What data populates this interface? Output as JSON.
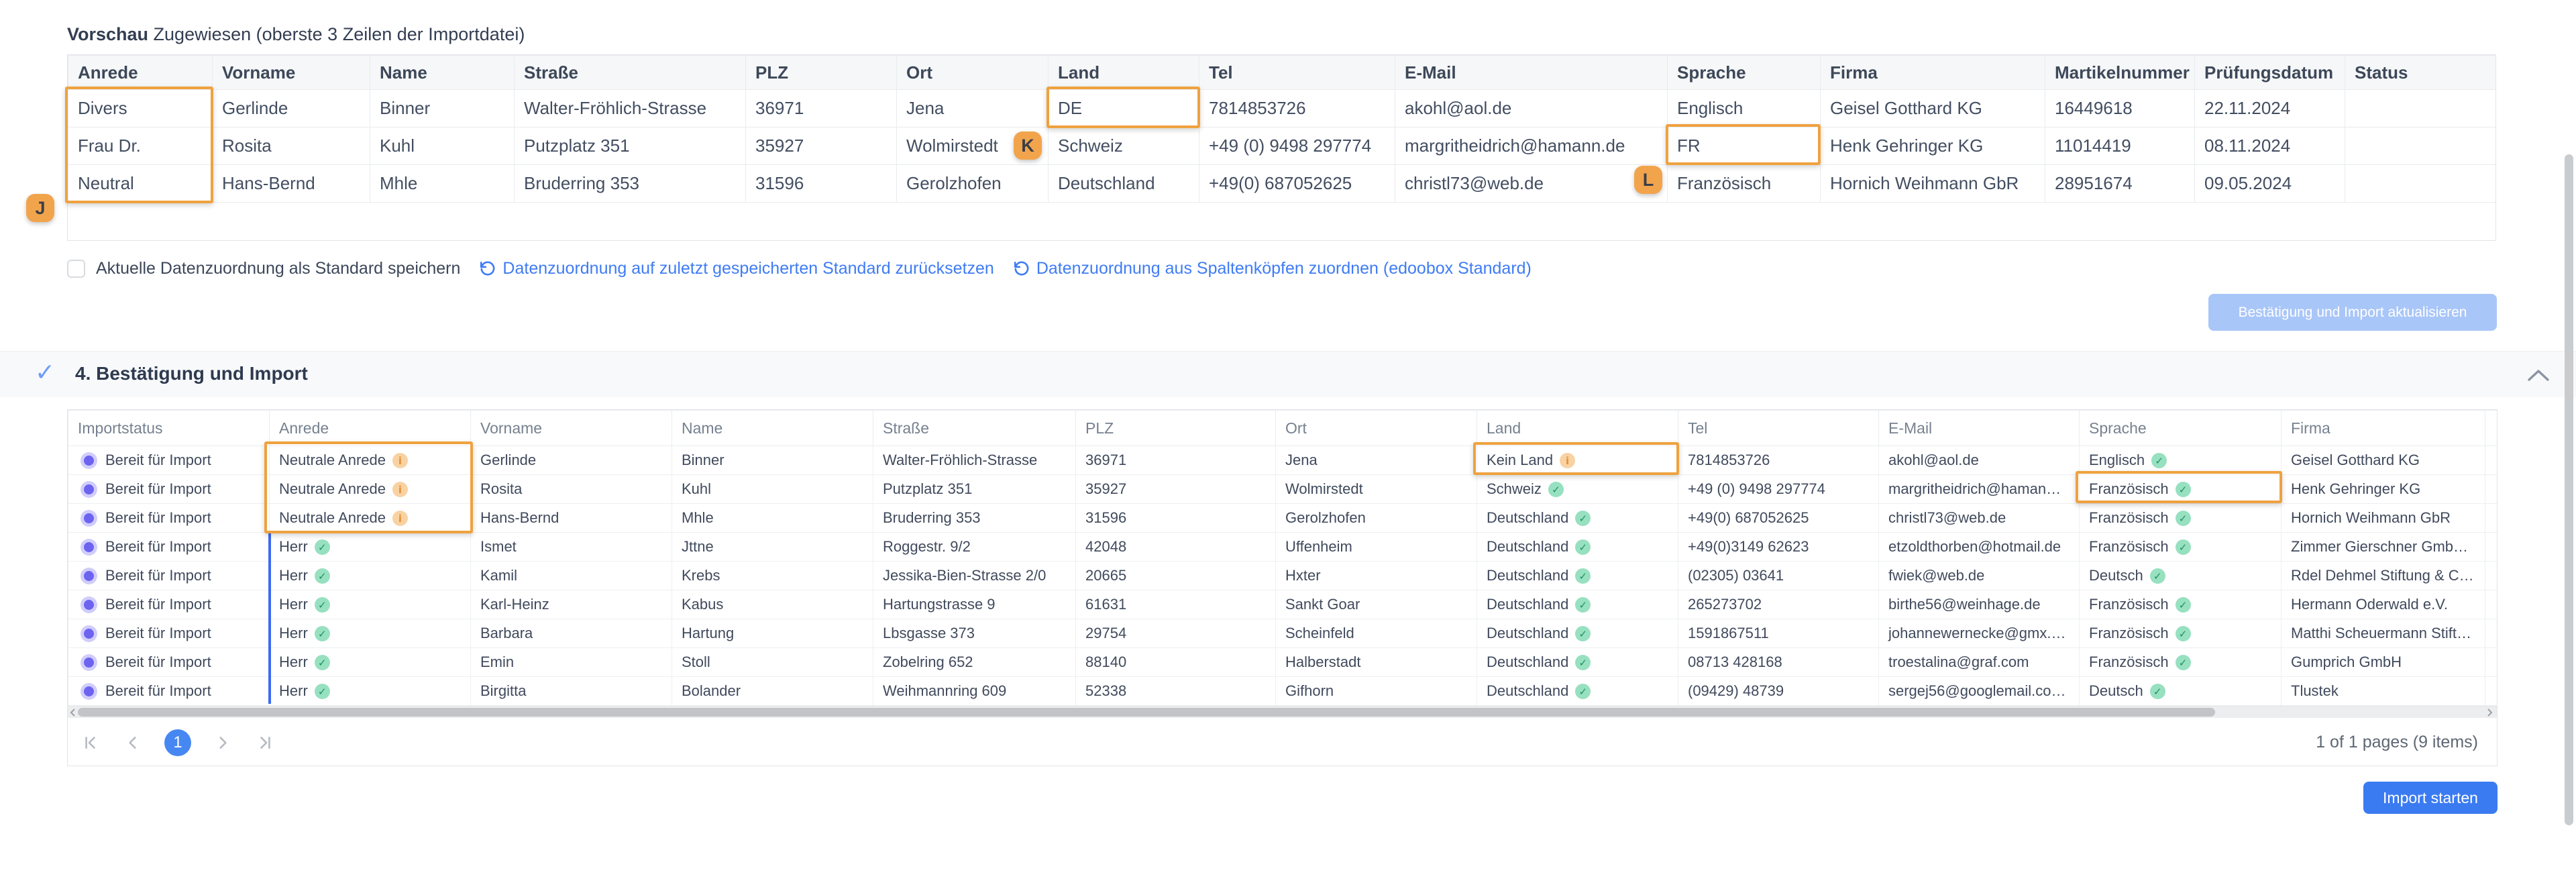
{
  "colors": {
    "annotation_orange": "#efa23f",
    "accent_blue": "#3b7bf2",
    "disabled_button_blue": "#a9c6f8",
    "status_dot_indigo": "#6c63f0",
    "check_green": "#1f9065",
    "info_orange": "#e2913b"
  },
  "preview": {
    "title_bold": "Vorschau",
    "title_rest": " Zugewiesen (oberste 3 Zeilen der Importdatei)",
    "table": {
      "headers": [
        "Anrede",
        "Vorname",
        "Name",
        "Straße",
        "PLZ",
        "Ort",
        "Land",
        "Tel",
        "E-Mail",
        "Sprache",
        "Firma",
        "Martikelnummer",
        "Prüfungsdatum",
        "Status"
      ],
      "rows": [
        [
          "Divers",
          "Gerlinde",
          "Binner",
          "Walter-Fröhlich-Strasse",
          "36971",
          "Jena",
          "DE",
          "7814853726",
          "akohl@aol.de",
          "Englisch",
          "Geisel Gotthard KG",
          "16449618",
          "22.11.2024",
          ""
        ],
        [
          "Frau Dr.",
          "Rosita",
          "Kuhl",
          "Putzplatz 351",
          "35927",
          "Wolmirstedt",
          "Schweiz",
          "+49 (0) 9498 297774",
          "margritheidrich@hamann.de",
          "FR",
          "Henk Gehringer KG",
          "11014419",
          "08.11.2024",
          ""
        ],
        [
          "Neutral",
          "Hans-Bernd",
          "Mhle",
          "Bruderring 353",
          "31596",
          "Gerolzhofen",
          "Deutschland",
          "+49(0) 687052625",
          "christl73@web.de",
          "Französisch",
          "Hornich Weihmann GbR",
          "28951674",
          "09.05.2024",
          ""
        ]
      ]
    }
  },
  "mapping": {
    "checkbox_label": "Aktuelle Datenzuordnung als Standard speichern",
    "links": [
      "Datenzuordnung auf zuletzt gespeicherten Standard zurücksetzen",
      "Datenzuordnung aus Spaltenköpfen zuordnen (edoobox Standard)"
    ]
  },
  "update_button": "Bestätigung und Import aktualisieren",
  "section": {
    "title": "4. Bestätigung und Import"
  },
  "import_table": {
    "headers": [
      "Importstatus",
      "Anrede",
      "Vorname",
      "Name",
      "Straße",
      "PLZ",
      "Ort",
      "Land",
      "Tel",
      "E-Mail",
      "Sprache",
      "Firma"
    ],
    "rows": [
      {
        "status": "Bereit für Import",
        "anrede": {
          "text": "Neutrale Anrede",
          "icon": "info"
        },
        "vorname": "Gerlinde",
        "name": "Binner",
        "strasse": "Walter-Fröhlich-Strasse",
        "plz": "36971",
        "ort": "Jena",
        "land": {
          "text": "Kein Land",
          "icon": "info"
        },
        "tel": "7814853726",
        "email": "akohl@aol.de",
        "sprache": {
          "text": "Englisch",
          "icon": "check"
        },
        "firma": "Geisel Gotthard KG"
      },
      {
        "status": "Bereit für Import",
        "anrede": {
          "text": "Neutrale Anrede",
          "icon": "info"
        },
        "vorname": "Rosita",
        "name": "Kuhl",
        "strasse": "Putzplatz 351",
        "plz": "35927",
        "ort": "Wolmirstedt",
        "land": {
          "text": "Schweiz",
          "icon": "check"
        },
        "tel": "+49 (0) 9498 297774",
        "email": "margritheidrich@haman…",
        "sprache": {
          "text": "Französisch",
          "icon": "check"
        },
        "firma": "Henk Gehringer KG"
      },
      {
        "status": "Bereit für Import",
        "anrede": {
          "text": "Neutrale Anrede",
          "icon": "info"
        },
        "vorname": "Hans-Bernd",
        "name": "Mhle",
        "strasse": "Bruderring 353",
        "plz": "31596",
        "ort": "Gerolzhofen",
        "land": {
          "text": "Deutschland",
          "icon": "check"
        },
        "tel": "+49(0) 687052625",
        "email": "christl73@web.de",
        "sprache": {
          "text": "Französisch",
          "icon": "check"
        },
        "firma": "Hornich Weihmann GbR"
      },
      {
        "status": "Bereit für Import",
        "anrede": {
          "text": "Herr",
          "icon": "check"
        },
        "vorname": "Ismet",
        "name": "Jttne",
        "strasse": "Roggestr. 9/2",
        "plz": "42048",
        "ort": "Uffenheim",
        "land": {
          "text": "Deutschland",
          "icon": "check"
        },
        "tel": "+49(0)3149 62623",
        "email": "etzoldthorben@hotmail.de",
        "sprache": {
          "text": "Französisch",
          "icon": "check"
        },
        "firma": "Zimmer Gierschner Gmb…"
      },
      {
        "status": "Bereit für Import",
        "anrede": {
          "text": "Herr",
          "icon": "check"
        },
        "vorname": "Kamil",
        "name": "Krebs",
        "strasse": "Jessika-Bien-Strasse 2/0",
        "plz": "20665",
        "ort": "Hxter",
        "land": {
          "text": "Deutschland",
          "icon": "check"
        },
        "tel": "(02305) 03641",
        "email": "fwiek@web.de",
        "sprache": {
          "text": "Deutsch",
          "icon": "check"
        },
        "firma": "Rdel Dehmel Stiftung & C…"
      },
      {
        "status": "Bereit für Import",
        "anrede": {
          "text": "Herr",
          "icon": "check"
        },
        "vorname": "Karl-Heinz",
        "name": "Kabus",
        "strasse": "Hartungstrasse 9",
        "plz": "61631",
        "ort": "Sankt Goar",
        "land": {
          "text": "Deutschland",
          "icon": "check"
        },
        "tel": "265273702",
        "email": "birthe56@weinhage.de",
        "sprache": {
          "text": "Französisch",
          "icon": "check"
        },
        "firma": "Hermann Oderwald e.V."
      },
      {
        "status": "Bereit für Import",
        "anrede": {
          "text": "Herr",
          "icon": "check"
        },
        "vorname": "Barbara",
        "name": "Hartung",
        "strasse": "Lbsgasse 373",
        "plz": "29754",
        "ort": "Scheinfeld",
        "land": {
          "text": "Deutschland",
          "icon": "check"
        },
        "tel": "1591867511",
        "email": "johannewernecke@gmx.…",
        "sprache": {
          "text": "Französisch",
          "icon": "check"
        },
        "firma": "Matthi Scheuermann Stift…"
      },
      {
        "status": "Bereit für Import",
        "anrede": {
          "text": "Herr",
          "icon": "check"
        },
        "vorname": "Emin",
        "name": "Stoll",
        "strasse": "Zobelring 652",
        "plz": "88140",
        "ort": "Halberstadt",
        "land": {
          "text": "Deutschland",
          "icon": "check"
        },
        "tel": "08713 428168",
        "email": "troestalina@graf.com",
        "sprache": {
          "text": "Französisch",
          "icon": "check"
        },
        "firma": "Gumprich GmbH"
      },
      {
        "status": "Bereit für Import",
        "anrede": {
          "text": "Herr",
          "icon": "check"
        },
        "vorname": "Birgitta",
        "name": "Bolander",
        "strasse": "Weihmannring 609",
        "plz": "52338",
        "ort": "Gifhorn",
        "land": {
          "text": "Deutschland",
          "icon": "check"
        },
        "tel": "(09429) 48739",
        "email": "sergej56@googlemail.co…",
        "sprache": {
          "text": "Deutsch",
          "icon": "check"
        },
        "firma": "Tlustek"
      }
    ]
  },
  "pager": {
    "current_page": "1",
    "summary": "1 of 1 pages (9 items)"
  },
  "import_button": "Import starten",
  "annotations": {
    "badges": [
      "J",
      "K",
      "L"
    ]
  }
}
